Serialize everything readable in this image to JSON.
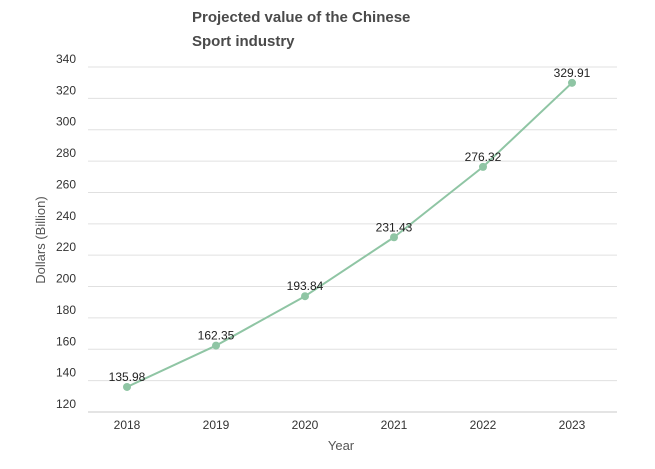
{
  "chart_data": {
    "type": "line",
    "title": "Projected value of the Chinese Sport industry",
    "xlabel": "Year",
    "ylabel": "Dollars (Billion)",
    "categories": [
      "2018",
      "2019",
      "2020",
      "2021",
      "2022",
      "2023"
    ],
    "series": [
      {
        "values": [
          135.98,
          162.35,
          193.84,
          231.43,
          276.32,
          329.91
        ],
        "color": "#8fc5a4"
      }
    ],
    "data_labels": [
      "135.98",
      "162.35",
      "193.84",
      "231.43",
      "276.32",
      "329.91"
    ],
    "ylim": [
      120,
      340
    ],
    "yticks": [
      120,
      140,
      160,
      180,
      200,
      220,
      240,
      260,
      280,
      300,
      320,
      340
    ],
    "grid": true,
    "legend": "none",
    "colors": {
      "line": "#8fc5a4",
      "gridline": "#e0e0e0",
      "axis_line": "#c8c8c8"
    }
  }
}
